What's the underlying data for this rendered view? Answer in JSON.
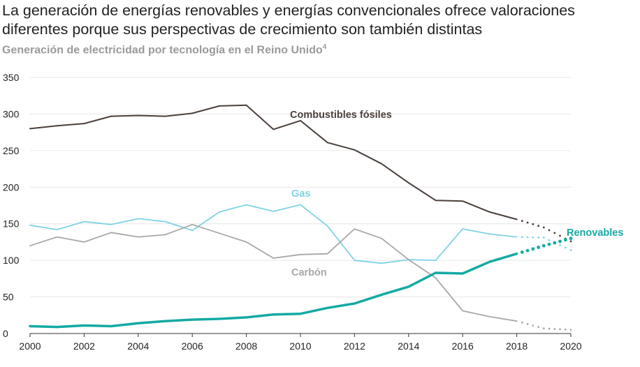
{
  "title": "La generación de energías renovables y energías convencionales ofrece valoraciones diferentes porque sus perspectivas de crecimiento son también distintas",
  "subtitle": "Generación de electricidad por tecnología en el Reino Unido",
  "subtitle_note": "4",
  "chart_data": {
    "type": "line",
    "ylim": [
      0,
      350
    ],
    "yticks": [
      0,
      50,
      100,
      150,
      200,
      250,
      300,
      350
    ],
    "xlim": [
      2000,
      2020
    ],
    "xticks": [
      2000,
      2002,
      2004,
      2006,
      2008,
      2010,
      2012,
      2014,
      2016,
      2018,
      2020
    ],
    "grid": "horizontal",
    "series": [
      {
        "name": "Combustibles fósiles",
        "color": "#4a3f3a",
        "x": [
          2000,
          2001,
          2002,
          2003,
          2004,
          2005,
          2006,
          2007,
          2008,
          2009,
          2010,
          2011,
          2012,
          2013,
          2014,
          2015,
          2016,
          2017,
          2018
        ],
        "values": [
          280,
          284,
          287,
          297,
          298,
          297,
          301,
          311,
          312,
          279,
          291,
          261,
          251,
          232,
          206,
          182,
          181,
          166,
          156
        ],
        "projection_x": [
          2018,
          2019,
          2020
        ],
        "projection_values": [
          156,
          145,
          126
        ]
      },
      {
        "name": "Gas",
        "color": "#7fd3e3",
        "x": [
          2000,
          2001,
          2002,
          2003,
          2004,
          2005,
          2006,
          2007,
          2008,
          2009,
          2010,
          2011,
          2012,
          2013,
          2014,
          2015,
          2016,
          2017,
          2018
        ],
        "values": [
          148,
          142,
          153,
          149,
          157,
          153,
          141,
          166,
          176,
          167,
          176,
          147,
          100,
          96,
          101,
          100,
          143,
          136,
          132
        ],
        "projection_x": [
          2018,
          2019,
          2020
        ],
        "projection_values": [
          132,
          131,
          114
        ]
      },
      {
        "name": "Carbón",
        "color": "#a8a8a8",
        "x": [
          2000,
          2001,
          2002,
          2003,
          2004,
          2005,
          2006,
          2007,
          2008,
          2009,
          2010,
          2011,
          2012,
          2013,
          2014,
          2015,
          2016,
          2017,
          2018
        ],
        "values": [
          120,
          132,
          125,
          138,
          132,
          135,
          149,
          137,
          125,
          103,
          108,
          109,
          143,
          130,
          101,
          76,
          31,
          23,
          17
        ],
        "projection_x": [
          2018,
          2019,
          2020
        ],
        "projection_values": [
          17,
          7,
          5
        ]
      },
      {
        "name": "Renovables",
        "color": "#14aaa3",
        "x": [
          2000,
          2001,
          2002,
          2003,
          2004,
          2005,
          2006,
          2007,
          2008,
          2009,
          2010,
          2011,
          2012,
          2013,
          2014,
          2015,
          2016,
          2017,
          2018
        ],
        "values": [
          10,
          9,
          11,
          10,
          14,
          17,
          19,
          20,
          22,
          26,
          27,
          35,
          41,
          53,
          64,
          83,
          82,
          98,
          109
        ],
        "projection_x": [
          2018,
          2019,
          2020
        ],
        "projection_values": [
          109,
          120,
          130
        ]
      }
    ]
  }
}
